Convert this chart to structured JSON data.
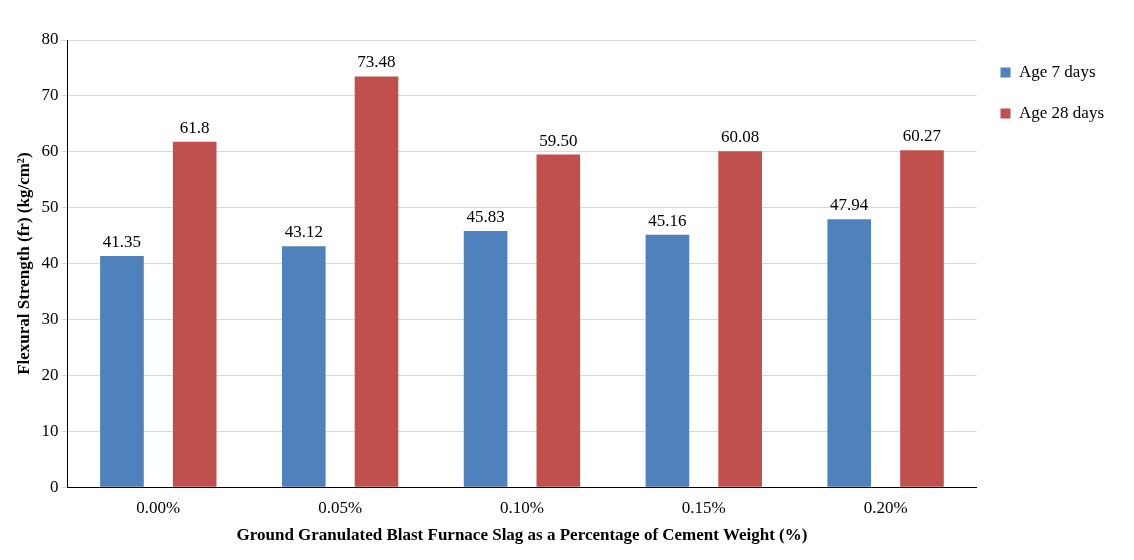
{
  "chart_data": {
    "type": "bar",
    "xlabel": "Ground Granulated Blast Furnace Slag as a Percentage of Cement Weight (%)",
    "ylabel": "Flexural Strength (fr) (kg/cm²)",
    "categories": [
      "0.00%",
      "0.05%",
      "0.10%",
      "0.15%",
      "0.20%"
    ],
    "series": [
      {
        "name": "Age 7 days",
        "color": "#4f81bd",
        "values": [
          41.35,
          43.12,
          45.83,
          45.16,
          47.94
        ],
        "value_labels": [
          "41.35",
          "43.12",
          "45.83",
          "45.16",
          "47.94"
        ]
      },
      {
        "name": "Age 28 days",
        "color": "#c0504d",
        "values": [
          61.8,
          73.48,
          59.5,
          60.08,
          60.27
        ],
        "value_labels": [
          "61.8",
          "73.48",
          "59.50",
          "60.08",
          "60.27"
        ]
      }
    ],
    "ylim": [
      0,
      80
    ],
    "yticks": [
      0,
      10,
      20,
      30,
      40,
      50,
      60,
      70,
      80
    ],
    "grid": "y",
    "legend": "top right"
  }
}
